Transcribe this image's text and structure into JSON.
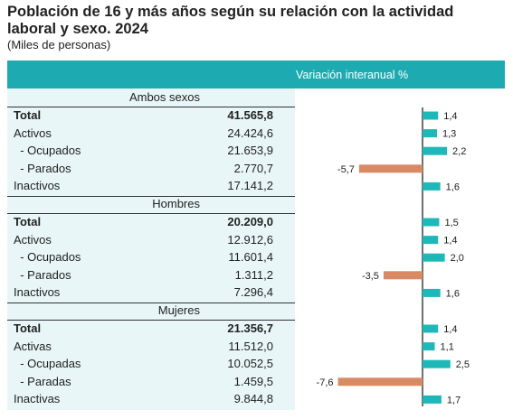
{
  "title": "Población de 16 y más años según su relación con la actividad laboral y sexo. 2024",
  "subtitle": "(Miles de personas)",
  "chart_header": "Variación interanual %",
  "colors": {
    "header": "#1dabb1",
    "positive_bar": "#1fb8b8",
    "negative_bar": "#d88a63",
    "table_bg": "#e8f6f7"
  },
  "sections": [
    {
      "title": "Ambos sexos",
      "rows": [
        {
          "label": "Total",
          "value": "41.565,8",
          "bold": true
        },
        {
          "label": "Activos",
          "value": "24.424,6"
        },
        {
          "label": "  - Ocupados",
          "value": "21.653,9"
        },
        {
          "label": "  - Parados",
          "value": "2.770,7"
        },
        {
          "label": "Inactivos",
          "value": "17.141,2"
        }
      ]
    },
    {
      "title": "Hombres",
      "rows": [
        {
          "label": "Total",
          "value": "20.209,0",
          "bold": true
        },
        {
          "label": "Activos",
          "value": "12.912,6"
        },
        {
          "label": "  - Ocupados",
          "value": "11.601,4"
        },
        {
          "label": "  - Parados",
          "value": "1.311,2"
        },
        {
          "label": "Inactivos",
          "value": "7.296,4"
        }
      ]
    },
    {
      "title": "Mujeres",
      "rows": [
        {
          "label": "Total",
          "value": "21.356,7",
          "bold": true
        },
        {
          "label": "Activas",
          "value": "11.512,0"
        },
        {
          "label": "  - Ocupadas",
          "value": "10.052,5"
        },
        {
          "label": "  - Paradas",
          "value": "1.459,5"
        },
        {
          "label": "Inactivas",
          "value": "9.844,8"
        }
      ]
    }
  ],
  "chart_data": {
    "type": "bar",
    "orientation": "horizontal",
    "title": "Población de 16 y más años según su relación con la actividad laboral y sexo. 2024",
    "xlabel": "Variación interanual %",
    "categories": [
      "Total",
      "Activos",
      "- Ocupados",
      "- Parados",
      "Inactivos",
      "Total",
      "Activos",
      "- Ocupados",
      "- Parados",
      "Inactivos",
      "Total",
      "Activas",
      "- Ocupadas",
      "- Paradas",
      "Inactivas"
    ],
    "groups": [
      "Ambos sexos",
      "Ambos sexos",
      "Ambos sexos",
      "Ambos sexos",
      "Ambos sexos",
      "Hombres",
      "Hombres",
      "Hombres",
      "Hombres",
      "Hombres",
      "Mujeres",
      "Mujeres",
      "Mujeres",
      "Mujeres",
      "Mujeres"
    ],
    "values": [
      1.4,
      1.3,
      2.2,
      -5.7,
      1.6,
      1.5,
      1.4,
      2.0,
      -3.5,
      1.6,
      1.4,
      1.1,
      2.5,
      -7.6,
      1.7
    ],
    "value_labels": [
      "1,4",
      "1,3",
      "2,2",
      "-5,7",
      "1,6",
      "1,5",
      "1,4",
      "2,0",
      "-3,5",
      "1,6",
      "1,4",
      "1,1",
      "2,5",
      "-7,6",
      "1,7"
    ],
    "xlim": [
      -8,
      3
    ]
  }
}
